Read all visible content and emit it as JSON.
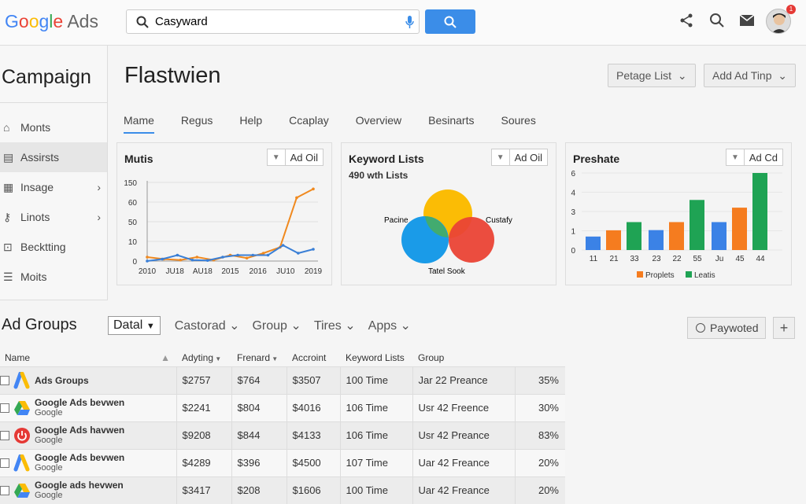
{
  "header": {
    "logo_google": "Google",
    "logo_ads": "Ads",
    "search_value": "Casyward",
    "notification_count": "1",
    "icons": [
      "share-icon",
      "search-icon",
      "mail-icon"
    ]
  },
  "sidebar": {
    "title": "Campaign",
    "items": [
      {
        "label": "Monts",
        "icon": "home-icon",
        "chevron": false
      },
      {
        "label": "Assirsts",
        "icon": "list-icon",
        "chevron": false,
        "active": true
      },
      {
        "label": "Insage",
        "icon": "grid-icon",
        "chevron": true
      },
      {
        "label": "Linots",
        "icon": "key-icon",
        "chevron": true
      },
      {
        "label": "Becktting",
        "icon": "briefcase-icon",
        "chevron": false
      },
      {
        "label": "Moits",
        "icon": "menu-icon",
        "chevron": false
      }
    ]
  },
  "page": {
    "title": "Flastwien",
    "buttons": [
      "Petage List",
      "Add Ad Tinp"
    ],
    "tabs": [
      "Mame",
      "Regus",
      "Help",
      "Ccaplay",
      "Overview",
      "Besinarts",
      "Soures"
    ],
    "active_tab": 0
  },
  "cards": {
    "metrics": {
      "title": "Mutis",
      "button": "Ad Oil"
    },
    "keywords": {
      "title": "Keyword Lists",
      "subtitle": "490 wth Lists",
      "button": "Ad Oil",
      "labels": [
        "Pacine",
        "Custafy",
        "Tatel Sook"
      ],
      "colors": [
        "#fbbc05",
        "#1a9be8",
        "#ea4335"
      ]
    },
    "preshate": {
      "title": "Preshate",
      "button": "Ad Cd"
    }
  },
  "chart_data": [
    {
      "type": "line",
      "title": "Mutis",
      "y_ticks": [
        0,
        10,
        50,
        60,
        150
      ],
      "x_labels": [
        "2010",
        "JU18",
        "AU18",
        "2015",
        "2016",
        "JU10",
        "2019"
      ],
      "grid": true,
      "series": [
        {
          "color": "#f0891e",
          "values": [
            2,
            1,
            0.5,
            2,
            0.5,
            3,
            1.5,
            4,
            7,
            80,
            120
          ]
        },
        {
          "color": "#3a7fd6",
          "values": [
            0,
            1,
            3,
            0.5,
            0.3,
            2,
            3,
            3,
            3,
            8,
            4,
            6
          ]
        }
      ]
    },
    {
      "type": "bar",
      "title": "Preshate",
      "y_ticks": [
        0,
        1,
        3,
        4,
        6
      ],
      "grid": true,
      "categories": [
        "11",
        "21",
        "33",
        "23",
        "22",
        "55",
        "Ju",
        "45",
        "44"
      ],
      "values": [
        0.7,
        1.05,
        1.9,
        1.07,
        1.9,
        3.6,
        1.9,
        3.2,
        6
      ],
      "bar_colors": [
        "#3b82e6",
        "#f57c1f",
        "#1fa354",
        "#3b82e6",
        "#f57c1f",
        "#1fa354",
        "#3b82e6",
        "#f57c1f",
        "#1fa354"
      ],
      "legend": [
        {
          "name": "Proplets",
          "color": "#f57c1f"
        },
        {
          "name": "Leatis",
          "color": "#1fa354"
        }
      ],
      "legend_position": "bottom"
    }
  ],
  "ad_groups": {
    "title": "Ad Groups",
    "select": "Datal",
    "filters": [
      "Castorad",
      "Group",
      "Tires",
      "Apps"
    ],
    "paywall_button": "Paywoted",
    "add": "+",
    "columns": [
      "Name",
      "Adyting",
      "Frenard",
      "Accroint",
      "Keyword Lists",
      "Group",
      ""
    ],
    "rows": [
      {
        "name": "Ads Groups",
        "sub": "",
        "icon": "google-ads-icon",
        "c": [
          "$2757",
          "$764",
          "$3507",
          "100 Time",
          "Jar 22 Preance",
          "35%"
        ]
      },
      {
        "name": "Google Ads bevwen",
        "sub": "Google",
        "icon": "google-drive-icon",
        "c": [
          "$2241",
          "$804",
          "$4016",
          "106 Time",
          "Usr 42 Freence",
          "30%"
        ]
      },
      {
        "name": "Google Ads havwen",
        "sub": "Google",
        "icon": "power-icon",
        "c": [
          "$9208",
          "$844",
          "$4133",
          "106 Time",
          "Usr 42 Preance",
          "83%"
        ]
      },
      {
        "name": "Google Ads bevwen",
        "sub": "Google",
        "icon": "google-ads-icon",
        "c": [
          "$4289",
          "$396",
          "$4500",
          "107 Time",
          "Uar 42 Freance",
          "20%"
        ]
      },
      {
        "name": "Google ads hevwen",
        "sub": "Google",
        "icon": "google-drive-icon",
        "c": [
          "$3417",
          "$208",
          "$1606",
          "100 Time",
          "Uar 42 Freance",
          "20%"
        ]
      }
    ]
  }
}
